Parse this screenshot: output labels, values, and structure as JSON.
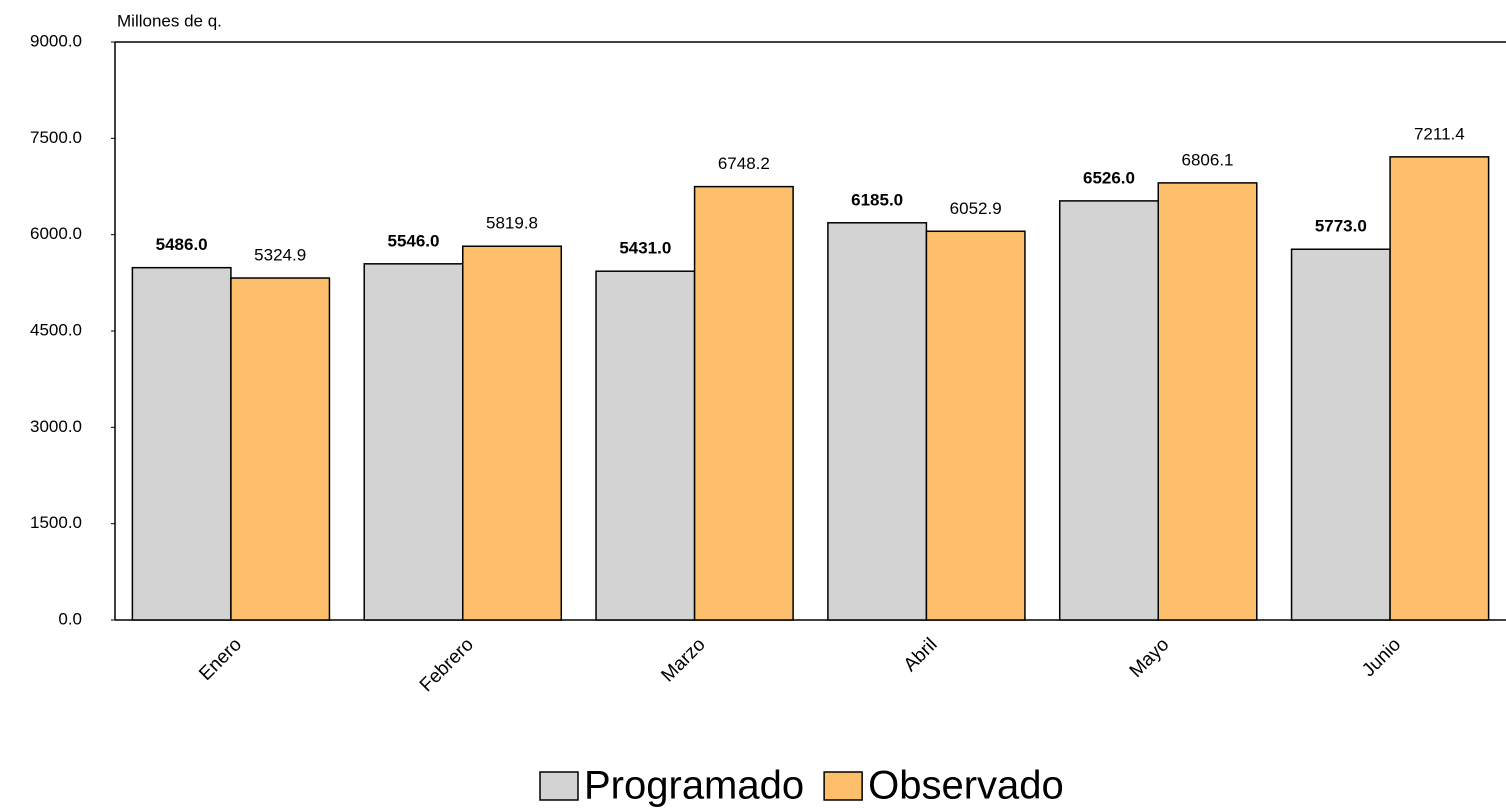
{
  "chart_data": {
    "type": "bar",
    "y_axis_label": "Millones de q.",
    "categories": [
      "Enero",
      "Febrero",
      "Marzo",
      "Abril",
      "Mayo",
      "Junio"
    ],
    "series": [
      {
        "name": "Programado",
        "color": "#d3d3d3",
        "values": [
          5486,
          5546,
          5431,
          6185,
          6526,
          5773
        ],
        "value_labels": [
          "5486.0",
          "5546.0",
          "5431.0",
          "6185.0",
          "6526.0",
          "5773.0"
        ]
      },
      {
        "name": "Observado",
        "color": "#fdbf6b",
        "values": [
          5324.9,
          5819.8,
          6748.2,
          6052.9,
          6806.1,
          7211.4
        ],
        "value_labels": [
          "5324.9",
          "5819.8",
          "6748.2",
          "6052.9",
          "6806.1",
          "7211.4"
        ]
      }
    ],
    "ylim": [
      0,
      9000
    ],
    "yticks": [
      {
        "value": 0,
        "label": "0.0"
      },
      {
        "value": 1500,
        "label": "1500.0"
      },
      {
        "value": 3000,
        "label": "3000.0"
      },
      {
        "value": 4500,
        "label": "4500.0"
      },
      {
        "value": 6000,
        "label": "6000.0"
      },
      {
        "value": 7500,
        "label": "7500.0"
      },
      {
        "value": 9000,
        "label": "9000.0"
      }
    ],
    "grid": false
  }
}
